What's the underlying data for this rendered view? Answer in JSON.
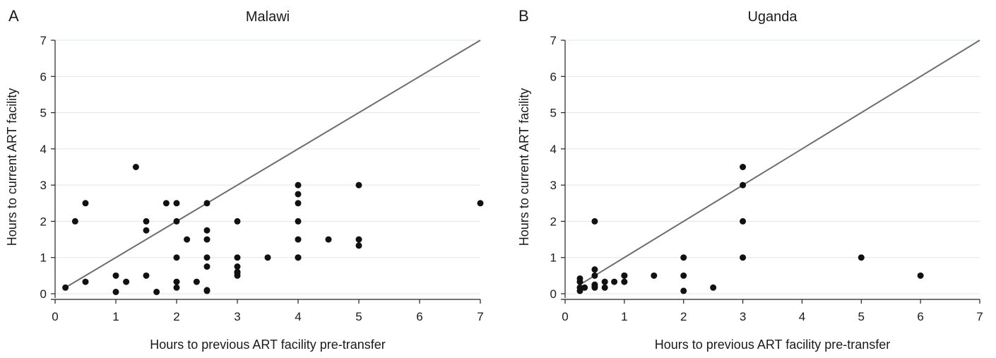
{
  "chart_data": [
    {
      "type": "scatter",
      "panel_label": "A",
      "title": "Malawi",
      "xlabel": "Hours to previous ART facility pre-transfer",
      "ylabel": "Hours to current ART facility",
      "xlim": [
        0,
        7
      ],
      "ylim": [
        0,
        7
      ],
      "xticks": [
        0,
        1,
        2,
        3,
        4,
        5,
        6,
        7
      ],
      "yticks": [
        0,
        1,
        2,
        3,
        4,
        5,
        6,
        7
      ],
      "grid": true,
      "reference_line": [
        [
          0.17,
          0.17
        ],
        [
          7,
          7
        ]
      ],
      "x": [
        0.17,
        0.33,
        0.5,
        0.5,
        1,
        1,
        1.17,
        1.33,
        1.5,
        1.5,
        1.5,
        1.67,
        1.83,
        2,
        2,
        2,
        2,
        2,
        2.17,
        2.33,
        2.5,
        2.5,
        2.5,
        2.5,
        2.5,
        2.5,
        2.5,
        3,
        3,
        3,
        3,
        3,
        3,
        3.5,
        4,
        4,
        4,
        4,
        4,
        4,
        4,
        4.5,
        5,
        5,
        5,
        7
      ],
      "y": [
        0.17,
        2,
        2.5,
        0.33,
        0.5,
        0.05,
        0.33,
        3.5,
        2,
        1.75,
        0.5,
        0.05,
        2.5,
        2.5,
        2,
        1,
        0.33,
        0.17,
        1.5,
        0.33,
        2.5,
        1.75,
        1.5,
        1,
        0.75,
        0.1,
        0.08,
        2,
        1,
        0.75,
        0.58,
        0.5,
        0.6,
        1,
        3,
        2.75,
        2.5,
        2,
        1.5,
        1,
        1,
        1.5,
        3,
        1.5,
        1.33,
        2.5
      ]
    },
    {
      "type": "scatter",
      "panel_label": "B",
      "title": "Uganda",
      "xlabel": "Hours to previous ART facility pre-transfer",
      "ylabel": "Hours to current ART facility",
      "xlim": [
        0,
        7
      ],
      "ylim": [
        0,
        7
      ],
      "xticks": [
        0,
        1,
        2,
        3,
        4,
        5,
        6,
        7
      ],
      "yticks": [
        0,
        1,
        2,
        3,
        4,
        5,
        6,
        7
      ],
      "grid": true,
      "reference_line": [
        [
          0.25,
          0.25
        ],
        [
          7,
          7
        ]
      ],
      "x": [
        0.25,
        0.25,
        0.25,
        0.25,
        0.33,
        0.5,
        0.5,
        0.5,
        0.5,
        0.5,
        0.5,
        0.67,
        0.67,
        0.83,
        1,
        1,
        1,
        1.5,
        2,
        2,
        2,
        2.5,
        3,
        3,
        3,
        3,
        5,
        6
      ],
      "y": [
        0.42,
        0.33,
        0.17,
        0.08,
        0.17,
        2,
        0.67,
        0.5,
        0.25,
        0.2,
        0.17,
        0.33,
        0.17,
        0.33,
        0.5,
        0.5,
        0.33,
        0.5,
        1,
        0.5,
        0.08,
        0.17,
        3.5,
        3,
        2,
        1,
        1,
        0.5
      ]
    }
  ]
}
